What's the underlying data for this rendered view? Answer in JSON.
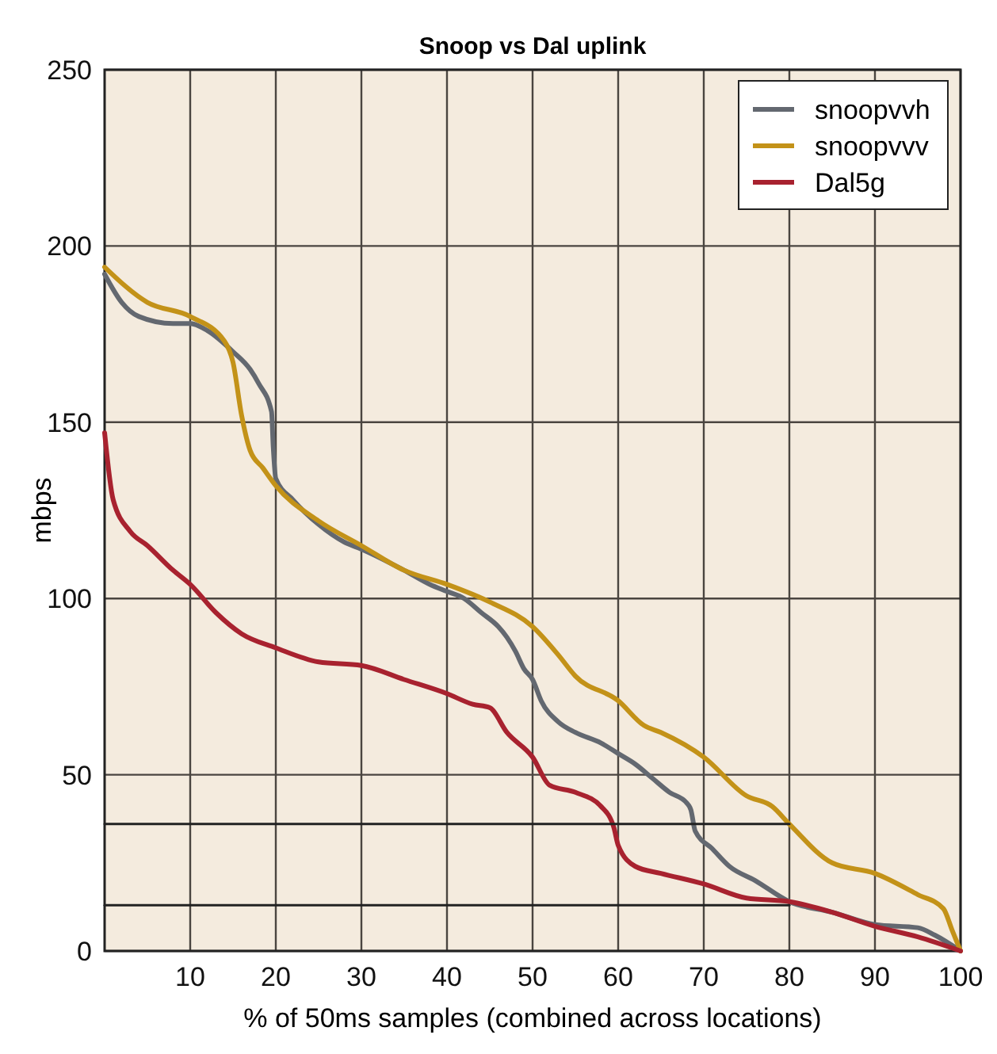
{
  "chart_data": {
    "type": "line",
    "title": "Snoop vs Dal uplink",
    "xlabel": "% of 50ms samples (combined across locations)",
    "ylabel": "mbps",
    "xlim": [
      0,
      100
    ],
    "xticks": [
      10,
      20,
      30,
      40,
      50,
      60,
      70,
      80,
      90,
      100
    ],
    "ylim": [
      0,
      250
    ],
    "yticks": [
      0,
      50,
      100,
      150,
      200,
      250
    ],
    "grid": true,
    "legend": "top right",
    "series": [
      {
        "name": "snoopvvh",
        "color": "#636870",
        "x": [
          0,
          2,
          4,
          8,
          10,
          12,
          15,
          17,
          18,
          19.5,
          19.7,
          20,
          22,
          25,
          28,
          30,
          35,
          38,
          40,
          42,
          44,
          46,
          47,
          48,
          49,
          50,
          51,
          53,
          55,
          58,
          60,
          62,
          64,
          66,
          68,
          68.5,
          69,
          71,
          73,
          76,
          80,
          85,
          90,
          95,
          97,
          100
        ],
        "values": [
          192,
          184,
          180,
          178,
          178,
          176,
          170,
          165,
          161,
          153,
          143,
          134,
          128,
          121,
          116,
          114,
          108,
          104,
          102,
          100,
          96,
          92,
          89,
          85,
          80,
          77,
          71,
          65,
          62,
          59,
          56,
          53,
          49,
          45,
          42,
          40,
          34,
          29,
          24,
          20,
          14,
          11,
          7.5,
          6.6,
          4.5,
          0
        ]
      },
      {
        "name": "snoopvvv",
        "color": "#c39218",
        "x": [
          0,
          5,
          10,
          14,
          15,
          16,
          17,
          18.5,
          20,
          25,
          30,
          35,
          40,
          45,
          50,
          53,
          55,
          60,
          63,
          65,
          70,
          75,
          78,
          80,
          85,
          90,
          95,
          98,
          99,
          100
        ],
        "values": [
          194,
          184,
          180,
          173,
          167,
          152,
          142,
          137,
          132,
          122,
          115,
          108,
          104,
          99,
          92,
          84,
          78,
          71,
          64,
          62,
          55,
          44,
          41,
          36,
          25,
          22,
          16,
          12,
          6,
          0
        ]
      },
      {
        "name": "Dal5g",
        "color": "#a8222f",
        "x": [
          0,
          1,
          3,
          5,
          8,
          10,
          13,
          16,
          20,
          25,
          30,
          35,
          40,
          43,
          45,
          47,
          50,
          52,
          55,
          58,
          59.5,
          60,
          62,
          65,
          70,
          75,
          80,
          85,
          90,
          95,
          100
        ],
        "values": [
          147,
          128,
          119,
          115,
          108,
          104,
          96,
          90,
          86,
          82,
          81,
          77,
          73,
          70,
          69,
          62,
          55,
          47,
          45,
          41,
          35,
          30,
          24,
          22,
          19,
          15,
          14,
          11,
          7,
          4,
          0
        ]
      },
      {
        "color": "#222222",
        "x": [
          0,
          80
        ],
        "values": [
          36,
          36
        ]
      },
      {
        "color": "#222222",
        "x": [
          0,
          80
        ],
        "values": [
          13,
          13
        ]
      }
    ]
  }
}
